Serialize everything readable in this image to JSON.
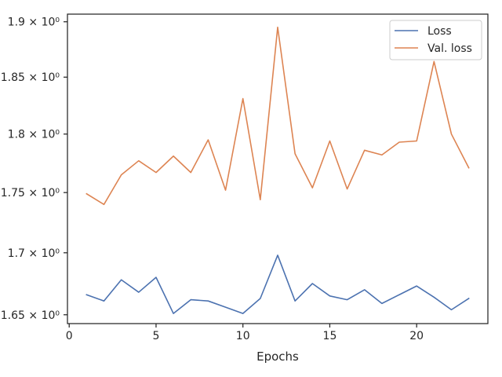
{
  "chart_data": {
    "type": "line",
    "xlabel": "Epochs",
    "ylabel": "",
    "y_scale": "log",
    "xlim": [
      -0.1,
      24.1
    ],
    "ylim": [
      1.643,
      1.907
    ],
    "x_ticks": [
      0,
      5,
      10,
      15,
      20
    ],
    "y_ticks": [
      {
        "value": 1.65,
        "label": "1.65 × 10⁰"
      },
      {
        "value": 1.7,
        "label": "1.7 × 10⁰"
      },
      {
        "value": 1.75,
        "label": "1.75 × 10⁰"
      },
      {
        "value": 1.8,
        "label": "1.8 × 10⁰"
      },
      {
        "value": 1.85,
        "label": "1.85 × 10⁰"
      },
      {
        "value": 1.9,
        "label": "1.9 × 10⁰"
      }
    ],
    "grid": false,
    "legend_position": "top-right",
    "x": [
      1,
      2,
      3,
      4,
      5,
      6,
      7,
      8,
      9,
      10,
      11,
      12,
      13,
      14,
      15,
      16,
      17,
      18,
      19,
      20,
      21,
      22,
      23
    ],
    "series": [
      {
        "name": "Loss",
        "color": "#4c72b0",
        "values": [
          1.666,
          1.661,
          1.678,
          1.668,
          1.68,
          1.651,
          1.662,
          1.661,
          1.656,
          1.651,
          1.663,
          1.698,
          1.661,
          1.675,
          1.665,
          1.662,
          1.67,
          1.659,
          1.666,
          1.673,
          1.664,
          1.654,
          1.663
        ]
      },
      {
        "name": "Val. loss",
        "color": "#dd8452",
        "values": [
          1.749,
          1.74,
          1.765,
          1.777,
          1.767,
          1.781,
          1.767,
          1.795,
          1.752,
          1.831,
          1.744,
          1.895,
          1.783,
          1.754,
          1.794,
          1.753,
          1.786,
          1.782,
          1.793,
          1.794,
          1.864,
          1.8,
          1.771
        ]
      }
    ]
  }
}
